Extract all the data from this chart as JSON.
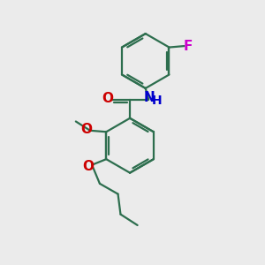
{
  "background_color": "#ebebeb",
  "bond_color": "#2d6e4e",
  "atom_colors": {
    "O": "#cc0000",
    "N": "#0000cc",
    "F": "#cc00cc",
    "H": "#0000cc"
  },
  "bond_width": 1.6,
  "font_size": 10,
  "fig_size": [
    3.0,
    3.0
  ],
  "dpi": 100
}
